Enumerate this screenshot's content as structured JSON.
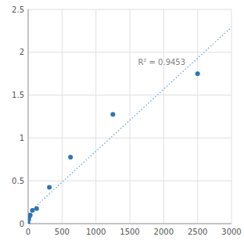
{
  "chart_data": {
    "type": "scatter",
    "series": [
      {
        "type": "scatter",
        "color": "#2E74B5",
        "x": [
          0,
          7.8125,
          15.625,
          31.25,
          62.5,
          125,
          312.5,
          625,
          1250,
          2500
        ],
        "values": [
          0.002,
          0.047,
          0.083,
          0.1,
          0.155,
          0.175,
          0.425,
          0.775,
          1.275,
          1.75
        ]
      },
      {
        "type": "line",
        "color": "#5BA3D9",
        "line_style": "dotted",
        "x": [
          0,
          3000
        ],
        "values": [
          0.1220362,
          2.29254171
        ]
      }
    ],
    "annotations": [
      {
        "text": "R² = 0.9453",
        "x": 1620,
        "y": 1.85,
        "color": "#7F7F7F"
      }
    ],
    "xlim": [
      0,
      3000
    ],
    "ylim": [
      0,
      2.5
    ],
    "xticks": [
      0,
      500,
      1000,
      1500,
      2000,
      2500,
      3000
    ],
    "yticks": [
      0,
      0.5,
      1,
      1.5,
      2,
      2.5
    ],
    "grid": true
  }
}
